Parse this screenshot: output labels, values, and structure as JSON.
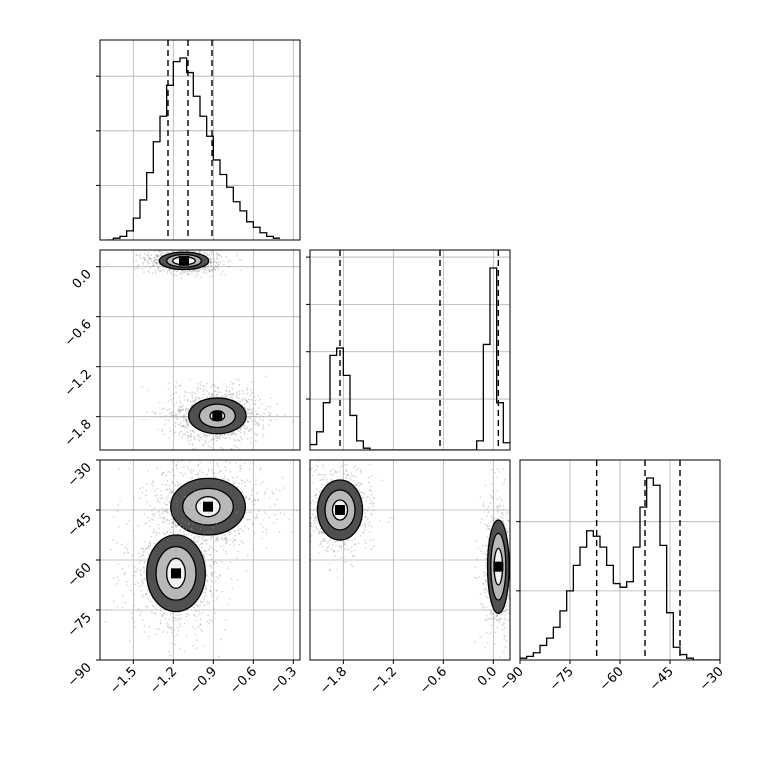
{
  "chart_data": {
    "type": "corner",
    "parameters": [
      {
        "range": [
          -1.75,
          -0.25
        ],
        "ticks": [
          -1.5,
          -1.2,
          -0.9,
          -0.6,
          -0.3
        ],
        "tick_labels": [
          "−1.5",
          "−1.2",
          "−0.9",
          "−0.6",
          "−0.3"
        ]
      },
      {
        "range": [
          -2.2,
          0.2
        ],
        "ticks": [
          -1.8,
          -1.2,
          -0.6,
          0.0
        ],
        "tick_labels": [
          "−1.8",
          "−1.2",
          "−0.6",
          "0.0"
        ]
      },
      {
        "range": [
          -90,
          -30
        ],
        "ticks": [
          -90,
          -75,
          -60,
          -45,
          -30
        ],
        "tick_labels": [
          "−90",
          "−75",
          "−60",
          "−45",
          "−30"
        ]
      }
    ],
    "histograms": [
      {
        "param": 0,
        "edges": [
          -1.7,
          -1.65,
          -1.6,
          -1.55,
          -1.5,
          -1.45,
          -1.4,
          -1.35,
          -1.3,
          -1.25,
          -1.2,
          -1.15,
          -1.1,
          -1.05,
          -1.0,
          -0.95,
          -0.9,
          -0.85,
          -0.8,
          -0.75,
          -0.7,
          -0.65,
          -0.6,
          -0.55,
          -0.5,
          -0.45,
          -0.4
        ],
        "counts": [
          0.0,
          0.01,
          0.02,
          0.05,
          0.12,
          0.22,
          0.37,
          0.54,
          0.68,
          0.85,
          0.98,
          1.0,
          0.92,
          0.79,
          0.68,
          0.57,
          0.44,
          0.36,
          0.29,
          0.21,
          0.16,
          0.1,
          0.07,
          0.04,
          0.02,
          0.01
        ],
        "quantiles": [
          -1.24,
          -1.09,
          -0.91
        ],
        "grid_y": [
          0.3,
          0.6,
          0.9
        ]
      },
      {
        "param": 1,
        "edges": [
          -2.2,
          -2.12,
          -2.04,
          -1.96,
          -1.88,
          -1.8,
          -1.72,
          -1.64,
          -1.56,
          -1.48,
          -1.4,
          -1.32,
          -1.24,
          -1.16,
          -1.08,
          -1.0,
          -0.92,
          -0.84,
          -0.76,
          -0.68,
          -0.6,
          -0.52,
          -0.44,
          -0.36,
          -0.28,
          -0.2,
          -0.12,
          -0.04,
          0.04,
          0.12,
          0.2
        ],
        "counts": [
          0.03,
          0.1,
          0.26,
          0.52,
          0.56,
          0.41,
          0.19,
          0.05,
          0.01,
          0.0,
          0.0,
          0.0,
          0.0,
          0.0,
          0.0,
          0.0,
          0.0,
          0.0,
          0.0,
          0.0,
          0.0,
          0.0,
          0.0,
          0.0,
          0.0,
          0.05,
          0.58,
          1.0,
          0.26,
          0.04
        ],
        "quantiles": [
          -1.84,
          -0.64,
          0.06
        ],
        "grid_y": [
          0.28,
          0.54,
          0.8,
          1.06
        ]
      },
      {
        "param": 2,
        "edges": [
          -90,
          -88,
          -86,
          -84,
          -82,
          -80,
          -78,
          -76,
          -74,
          -72,
          -70,
          -68,
          -66,
          -64,
          -62,
          -60,
          -58,
          -56,
          -54,
          -52,
          -50,
          -48,
          -46,
          -44,
          -42,
          -40,
          -38,
          -36,
          -34,
          -32,
          -30
        ],
        "counts": [
          0.01,
          0.02,
          0.04,
          0.08,
          0.12,
          0.18,
          0.27,
          0.38,
          0.52,
          0.62,
          0.71,
          0.68,
          0.62,
          0.52,
          0.42,
          0.4,
          0.43,
          0.62,
          0.84,
          1.0,
          0.96,
          0.63,
          0.26,
          0.07,
          0.03,
          0.01,
          0.0,
          0.0,
          0.0,
          0.0
        ],
        "quantiles": [
          -67,
          -52.5,
          -42
        ],
        "grid_y": [
          0.38,
          0.76
        ]
      }
    ],
    "scatter_panels": [
      {
        "x_param": 0,
        "y_param": 1,
        "clusters": [
          {
            "center": [
              -1.12,
              0.07
            ],
            "radii": [
              [
                0.085,
                0.048
              ],
              [
                0.13,
                0.076
              ],
              [
                0.185,
                0.105
              ]
            ],
            "cloud": [
              0.26,
              0.15
            ],
            "points": 700
          },
          {
            "center": [
              -0.87,
              -1.79
            ],
            "radii": [
              [
                0.055,
                0.06
              ],
              [
                0.135,
                0.14
              ],
              [
                0.215,
                0.215
              ]
            ],
            "cloud": [
              0.32,
              0.3
            ],
            "points": 1100
          }
        ]
      },
      {
        "x_param": 0,
        "y_param": 2,
        "clusters": [
          {
            "center": [
              -0.94,
              -44
            ],
            "radii": [
              [
                0.09,
                3.0
              ],
              [
                0.19,
                5.5
              ],
              [
                0.28,
                8.5
              ]
            ],
            "cloud": [
              0.4,
              12
            ],
            "points": 900
          },
          {
            "center": [
              -1.18,
              -64
            ],
            "radii": [
              [
                0.07,
                4.5
              ],
              [
                0.15,
                8.0
              ],
              [
                0.22,
                11.5
              ]
            ],
            "cloud": [
              0.32,
              16
            ],
            "points": 900
          }
        ]
      },
      {
        "x_param": 1,
        "y_param": 2,
        "clusters": [
          {
            "center": [
              -1.84,
              -45
            ],
            "radii": [
              [
                0.09,
                3.0
              ],
              [
                0.18,
                6.0
              ],
              [
                0.27,
                9.0
              ]
            ],
            "cloud": [
              0.36,
              12
            ],
            "points": 700
          },
          {
            "center": [
              0.06,
              -62
            ],
            "radii": [
              [
                0.05,
                5.5
              ],
              [
                0.09,
                10.0
              ],
              [
                0.13,
                14.0
              ]
            ],
            "cloud": [
              0.16,
              19
            ],
            "points": 700
          }
        ]
      }
    ]
  }
}
